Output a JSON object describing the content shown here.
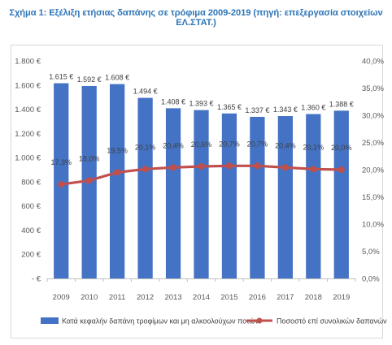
{
  "title": "Σχήμα 1: Εξέλιξη ετήσιας δαπάνης σε τρόφιμα 2009-2019 (πηγή: επεξεργασία στοιχείων ΕΛ.ΣΤΑΤ.)",
  "colors": {
    "bar": "#4472c4",
    "line": "#c0504d",
    "title": "#2e75b6",
    "grid": "#d9d9d9"
  },
  "chart_data": {
    "type": "bar",
    "categories": [
      "2009",
      "2010",
      "2011",
      "2012",
      "2013",
      "2014",
      "2015",
      "2016",
      "2017",
      "2018",
      "2019"
    ],
    "series": [
      {
        "name": "Κατά κεφαλήν δαπάνη τροφίμων και μη αλκοολούχων ποτών",
        "type": "bar",
        "axis": "left",
        "values": [
          1615,
          1592,
          1608,
          1494,
          1408,
          1393,
          1365,
          1337,
          1343,
          1360,
          1388
        ],
        "labels": [
          "1.615 €",
          "1.592 €",
          "1.608 €",
          "1.494 €",
          "1.408 €",
          "1.393 €",
          "1.365 €",
          "1.337 €",
          "1.343 €",
          "1.360 €",
          "1.388 €"
        ]
      },
      {
        "name": "Ποσοστό επί συνολικών δαπανών",
        "type": "line",
        "axis": "right",
        "values": [
          17.3,
          18.0,
          19.5,
          20.1,
          20.4,
          20.6,
          20.7,
          20.7,
          20.4,
          20.1,
          20.0
        ],
        "labels": [
          "17,3%",
          "18,0%",
          "19,5%",
          "20,1%",
          "20,4%",
          "20,6%",
          "20,7%",
          "20,7%",
          "20,4%",
          "20,1%",
          "20,0%"
        ]
      }
    ],
    "y_left": {
      "lim": [
        0,
        1800
      ],
      "ticks": [
        0,
        200,
        400,
        600,
        800,
        1000,
        1200,
        1400,
        1600,
        1800
      ],
      "tick_labels": [
        "- €",
        "200 €",
        "400 €",
        "600 €",
        "800 €",
        "1.000 €",
        "1.200 €",
        "1.400 €",
        "1.600 €",
        "1.800 €"
      ]
    },
    "y_right": {
      "lim": [
        0,
        40
      ],
      "ticks": [
        0,
        5,
        10,
        15,
        20,
        25,
        30,
        35,
        40
      ],
      "tick_labels": [
        "0,0%",
        "5,0%",
        "10,0%",
        "15,0%",
        "20,0%",
        "25,0%",
        "30,0%",
        "35,0%",
        "40,0%"
      ]
    },
    "grid": false,
    "legend_position": "bottom"
  }
}
